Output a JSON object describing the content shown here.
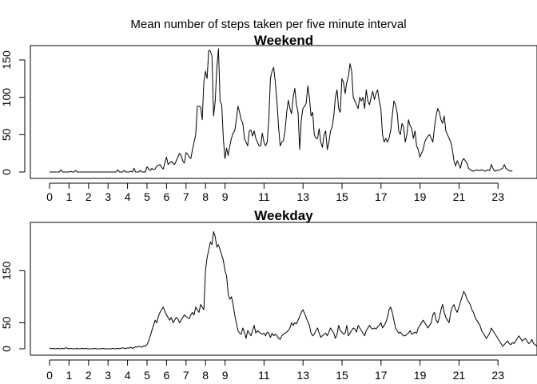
{
  "figure": {
    "title": "Mean number of steps taken per five minute interval"
  },
  "chart_data": [
    {
      "type": "line",
      "title": "Weekend",
      "xlabel": "",
      "ylabel": "",
      "xlim": [
        0,
        23.917
      ],
      "ylim": [
        0,
        166
      ],
      "grid": false,
      "x_ticks": [
        0,
        1,
        2,
        3,
        4,
        5,
        6,
        7,
        8,
        9,
        11,
        13,
        15,
        17,
        19,
        21,
        23
      ],
      "y_ticks": [
        0,
        50,
        100,
        150
      ],
      "x_step_hours": 0.0833,
      "series": [
        {
          "values": [
            0,
            0,
            0,
            0,
            0,
            0,
            0,
            3,
            0,
            0,
            0,
            0,
            0,
            1,
            0,
            0,
            2,
            0,
            0,
            0,
            0,
            0,
            0,
            0,
            0,
            0,
            0,
            0,
            0,
            0,
            0,
            0,
            0,
            0,
            0,
            0,
            0,
            0,
            0,
            0,
            0,
            0,
            3,
            0,
            0,
            0,
            2,
            0,
            0,
            0,
            1,
            0,
            5,
            0,
            0,
            0,
            2,
            0,
            0,
            0,
            7,
            4,
            2,
            5,
            3,
            4,
            8,
            9,
            10,
            6,
            4,
            12,
            20,
            10,
            12,
            14,
            12,
            10,
            15,
            20,
            25,
            22,
            15,
            12,
            26,
            24,
            20,
            18,
            30,
            40,
            50,
            88,
            88,
            87,
            70,
            120,
            135,
            125,
            163,
            162,
            155,
            75,
            95,
            140,
            165,
            95,
            90,
            45,
            18,
            32,
            22,
            35,
            45,
            52,
            55,
            70,
            88,
            80,
            70,
            65,
            45,
            40,
            35,
            55,
            56,
            48,
            55,
            45,
            40,
            35,
            35,
            52,
            40,
            35,
            40,
            70,
            125,
            135,
            140,
            120,
            95,
            60,
            35,
            40,
            42,
            55,
            80,
            96,
            85,
            78,
            100,
            112,
            90,
            80,
            30,
            70,
            85,
            88,
            92,
            115,
            100,
            75,
            80,
            50,
            45,
            45,
            58,
            40,
            33,
            50,
            55,
            30,
            40,
            55,
            60,
            75,
            100,
            110,
            85,
            80,
            125,
            120,
            105,
            120,
            128,
            145,
            135,
            100,
            95,
            90,
            85,
            100,
            95,
            100,
            85,
            110,
            95,
            90,
            100,
            108,
            97,
            105,
            110,
            95,
            85,
            50,
            40,
            45,
            40,
            45,
            55,
            75,
            95,
            90,
            80,
            55,
            50,
            65,
            60,
            40,
            50,
            70,
            62,
            58,
            45,
            55,
            35,
            30,
            20,
            25,
            30,
            40,
            45,
            48,
            50,
            45,
            40,
            60,
            75,
            85,
            80,
            70,
            65,
            75,
            55,
            50,
            45,
            40,
            30,
            15,
            8,
            15,
            10,
            5,
            15,
            18,
            15,
            12,
            5,
            3,
            2,
            1,
            2,
            3,
            2,
            2,
            3,
            2,
            1,
            2,
            3,
            2,
            10,
            5,
            1,
            2,
            2,
            3,
            4,
            5,
            10,
            5,
            3,
            2,
            1,
            2
          ]
        }
      ]
    },
    {
      "type": "line",
      "title": "Weekday",
      "xlabel": "",
      "ylabel": "",
      "xlim": [
        0,
        23.917
      ],
      "ylim": [
        0,
        235
      ],
      "grid": false,
      "x_ticks": [
        0,
        1,
        2,
        3,
        4,
        5,
        6,
        7,
        8,
        9,
        11,
        13,
        15,
        17,
        19,
        21,
        23
      ],
      "y_ticks": [
        0,
        50,
        150
      ],
      "x_step_hours": 0.0833,
      "series": [
        {
          "values": [
            2,
            0,
            1,
            0,
            0,
            1,
            0,
            0,
            1,
            0,
            2,
            1,
            0,
            1,
            0,
            0,
            0,
            1,
            0,
            0,
            1,
            0,
            1,
            0,
            0,
            0,
            0,
            0,
            1,
            0,
            0,
            0,
            0,
            1,
            0,
            0,
            0,
            0,
            0,
            1,
            0,
            0,
            1,
            0,
            1,
            2,
            1,
            0,
            2,
            1,
            3,
            1,
            2,
            4,
            3,
            5,
            4,
            3,
            6,
            5,
            8,
            15,
            25,
            35,
            45,
            55,
            50,
            62,
            70,
            75,
            80,
            72,
            65,
            60,
            55,
            60,
            50,
            55,
            60,
            58,
            50,
            55,
            60,
            65,
            62,
            60,
            58,
            65,
            70,
            65,
            80,
            75,
            70,
            85,
            80,
            75,
            150,
            175,
            190,
            205,
            200,
            225,
            215,
            195,
            200,
            190,
            180,
            170,
            150,
            140,
            105,
            95,
            100,
            85,
            65,
            50,
            35,
            30,
            28,
            40,
            32,
            20,
            35,
            30,
            25,
            35,
            45,
            30,
            35,
            32,
            30,
            28,
            30,
            25,
            32,
            30,
            22,
            30,
            25,
            28,
            25,
            20,
            18,
            25,
            28,
            30,
            32,
            35,
            40,
            50,
            45,
            50,
            48,
            55,
            62,
            70,
            75,
            68,
            60,
            52,
            45,
            30,
            25,
            28,
            35,
            40,
            30,
            22,
            25,
            28,
            30,
            25,
            32,
            40,
            35,
            30,
            20,
            28,
            45,
            35,
            32,
            28,
            30,
            45,
            25,
            30,
            35,
            40,
            38,
            32,
            45,
            40,
            35,
            30,
            25,
            35,
            40,
            45,
            40,
            38,
            40,
            38,
            42,
            45,
            50,
            40,
            45,
            50,
            60,
            75,
            80,
            70,
            55,
            40,
            35,
            30,
            32,
            28,
            25,
            25,
            28,
            30,
            35,
            28,
            30,
            32,
            30,
            40,
            45,
            50,
            55,
            50,
            45,
            40,
            45,
            50,
            65,
            70,
            55,
            50,
            60,
            75,
            85,
            70,
            60,
            55,
            50,
            70,
            80,
            85,
            75,
            70,
            80,
            90,
            100,
            110,
            105,
            95,
            90,
            85,
            75,
            70,
            60,
            55,
            50,
            45,
            35,
            30,
            25,
            20,
            25,
            30,
            40,
            35,
            30,
            25,
            20,
            15,
            10,
            5,
            8,
            12,
            15,
            10,
            8,
            12,
            10,
            15,
            20,
            25,
            20,
            15,
            18,
            20,
            15,
            10,
            12,
            18,
            10,
            8,
            5,
            3,
            5,
            8,
            10,
            12,
            10,
            15,
            12,
            10,
            5,
            3,
            2,
            1,
            2,
            1,
            0,
            3,
            5,
            3,
            2,
            1,
            0,
            2,
            1,
            0
          ]
        }
      ]
    }
  ]
}
